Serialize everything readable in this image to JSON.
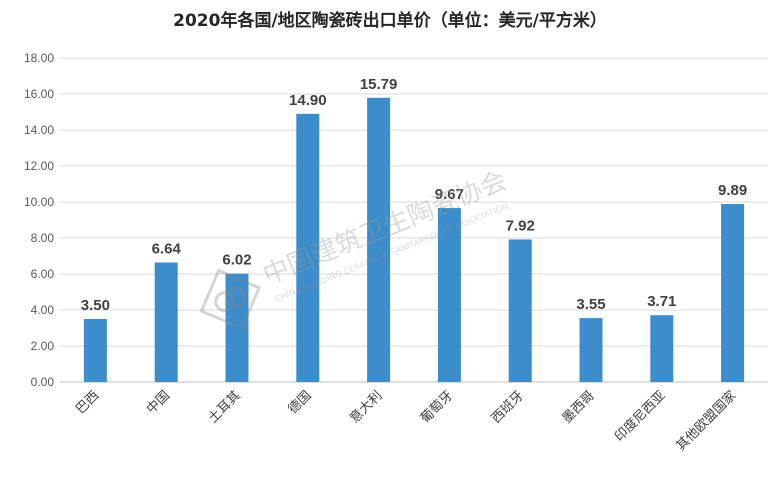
{
  "chart_data": {
    "type": "bar",
    "title": "2020年各国/地区陶瓷砖出口单价（单位：美元/平方米）",
    "categories": [
      "巴西",
      "中国",
      "土耳其",
      "德国",
      "意大利",
      "葡萄牙",
      "西班牙",
      "墨西哥",
      "印度尼西亚",
      "其他欧盟国家"
    ],
    "values": [
      3.5,
      6.64,
      6.02,
      14.9,
      15.79,
      9.67,
      7.92,
      3.55,
      3.71,
      9.89
    ],
    "value_labels": [
      "3.50",
      "6.64",
      "6.02",
      "14.90",
      "15.79",
      "9.67",
      "7.92",
      "3.55",
      "3.71",
      "9.89"
    ],
    "ylim": [
      0,
      18
    ],
    "yticks": [
      "0.00",
      "2.00",
      "4.00",
      "6.00",
      "8.00",
      "10.00",
      "12.00",
      "14.00",
      "16.00",
      "18.00"
    ],
    "xlabel": "",
    "ylabel": "",
    "grid": true,
    "bar_color": "#3C8DCC"
  },
  "watermark": {
    "text_cn": "中国建筑卫生陶瓷协会",
    "text_en": "CHINA BUILDING CERAMIC & SANITARYWARE ASSOCIATION"
  }
}
